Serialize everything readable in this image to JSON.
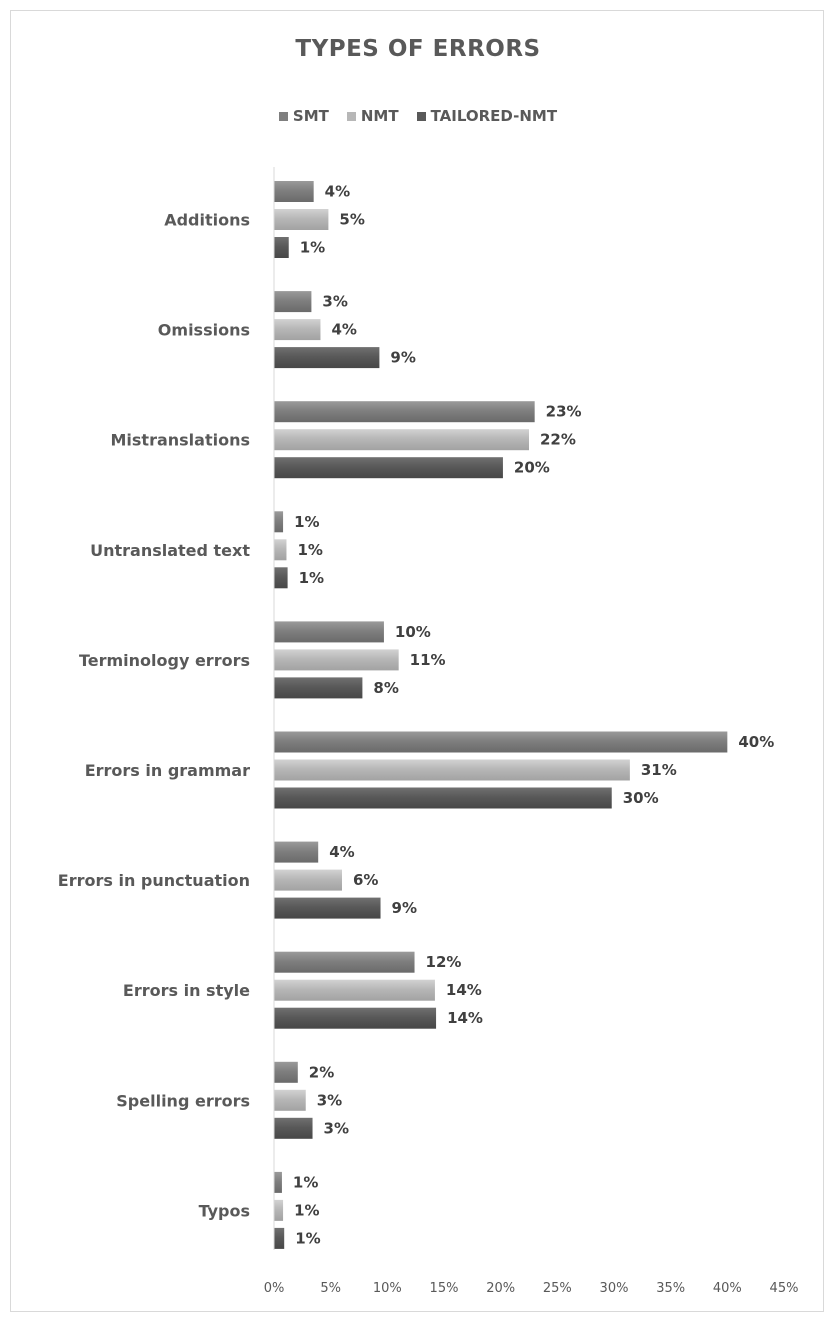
{
  "chart_data": {
    "type": "bar",
    "orientation": "horizontal",
    "title": "TYPES OF ERRORS",
    "legend_position": "top",
    "grid": false,
    "categories": [
      "Additions",
      "Omissions",
      "Mistranslations",
      "Untranslated text",
      "Terminology errors",
      "Errors in grammar",
      "Errors in punctuation",
      "Errors in style",
      "Spelling errors",
      "Typos"
    ],
    "series": [
      {
        "name": "SMT",
        "color": "#7f7f7f",
        "values": [
          3.5,
          3.3,
          23,
          0.8,
          9.7,
          40,
          3.9,
          12.4,
          2.1,
          0.7
        ],
        "labels": [
          "4%",
          "3%",
          "23%",
          "1%",
          "10%",
          "40%",
          "4%",
          "12%",
          "2%",
          "1%"
        ]
      },
      {
        "name": "NMT",
        "color": "#b7b7b7",
        "values": [
          4.8,
          4.1,
          22.5,
          1.1,
          11,
          31.4,
          6,
          14.2,
          2.8,
          0.8
        ],
        "labels": [
          "5%",
          "4%",
          "22%",
          "1%",
          "11%",
          "31%",
          "6%",
          "14%",
          "3%",
          "1%"
        ]
      },
      {
        "name": "TAILORED-NMT",
        "color": "#595959",
        "values": [
          1.3,
          9.3,
          20.2,
          1.2,
          7.8,
          29.8,
          9.4,
          14.3,
          3.4,
          0.9
        ],
        "labels": [
          "1%",
          "9%",
          "20%",
          "1%",
          "8%",
          "30%",
          "9%",
          "14%",
          "3%",
          "1%"
        ]
      }
    ],
    "xlim": [
      0,
      45
    ],
    "xticks": [
      0,
      5,
      10,
      15,
      20,
      25,
      30,
      35,
      40,
      45
    ],
    "xtick_labels": [
      "0%",
      "5%",
      "10%",
      "15%",
      "20%",
      "25%",
      "30%",
      "35%",
      "40%",
      "45%"
    ],
    "xlabel": "",
    "ylabel": ""
  }
}
